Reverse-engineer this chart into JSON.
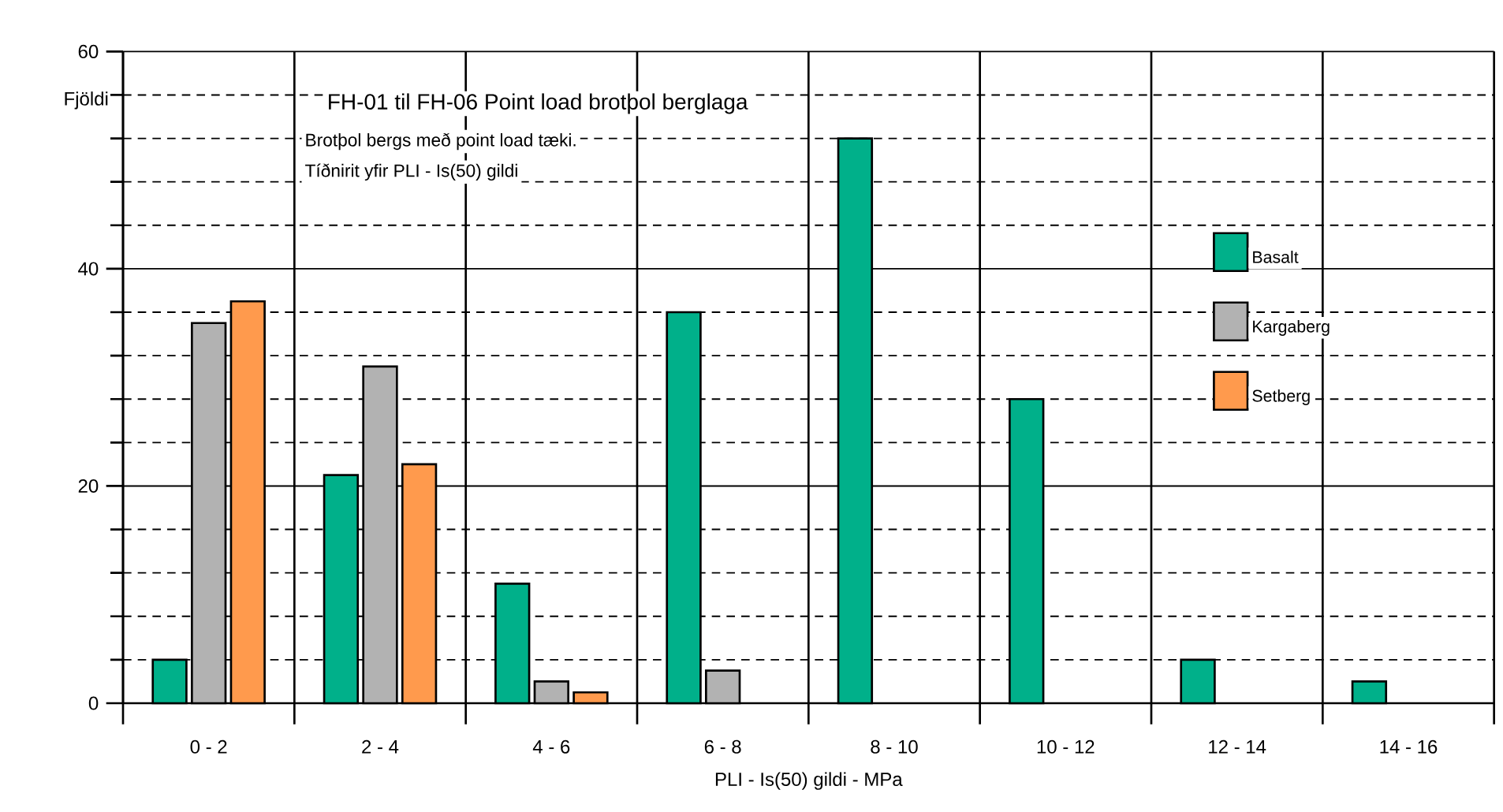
{
  "chart_data": {
    "type": "bar",
    "title": "FH-01 til FH-06  Point load brotþol berglaga",
    "subtitle": "Brotþol bergs með point load tæki.",
    "annotations": [
      "Tíðnirit yfir PLI - Is(50) gildi"
    ],
    "xlabel": "PLI - Is(50) gildi  - MPa",
    "ylabel": "Fjöldi",
    "categories": [
      "0 - 2",
      "2 - 4",
      "4 - 6",
      "6 - 8",
      "8 - 10",
      "10 - 12",
      "12 - 14",
      "14 - 16"
    ],
    "series": [
      {
        "name": "Basalt",
        "color": "#00b08a",
        "values": [
          4,
          21,
          11,
          36,
          52,
          28,
          4,
          2
        ]
      },
      {
        "name": "Kargaberg",
        "color": "#b2b2b2",
        "values": [
          35,
          31,
          2,
          3,
          null,
          null,
          null,
          null
        ]
      },
      {
        "name": "Setberg",
        "color": "#ff9a4d",
        "values": [
          37,
          22,
          1,
          null,
          null,
          null,
          null,
          null
        ]
      }
    ],
    "ylim": [
      0,
      60
    ],
    "yticks": [
      0,
      {
        "value": 4,
        "label": null
      },
      {
        "value": 8,
        "label": null
      },
      {
        "value": 12,
        "label": null
      },
      {
        "value": 16,
        "label": null
      },
      20,
      {
        "value": 24,
        "label": null
      },
      {
        "value": 28,
        "label": null
      },
      {
        "value": 32,
        "label": null
      },
      {
        "value": 36,
        "label": null
      },
      40,
      {
        "value": 44,
        "label": null
      },
      {
        "value": 48,
        "label": null
      },
      {
        "value": 52,
        "label": null
      },
      {
        "value": 56,
        "label": null
      },
      60
    ],
    "grid": true,
    "legend": "right"
  }
}
